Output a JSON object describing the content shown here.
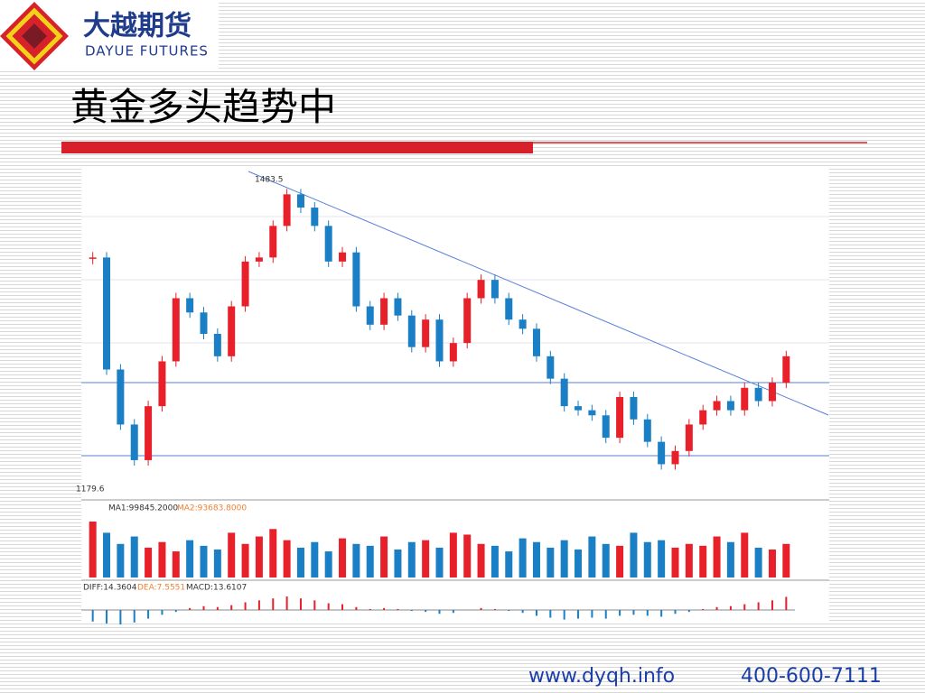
{
  "header": {
    "brand": "大越期货",
    "brand_en": "DAYUE FUTURES",
    "title": "黄金多头趋势中"
  },
  "footer": {
    "website": "www.dyqh.info",
    "phone": "400-600-7111"
  },
  "chart_data": {
    "type": "candlestick",
    "high_label": 1483.5,
    "low_label": 1179.6,
    "closes": [
      1407,
      1297,
      1243,
      1208,
      1261,
      1305,
      1367,
      1353,
      1332,
      1310,
      1359,
      1403,
      1407,
      1438,
      1469,
      1456,
      1438,
      1403,
      1412,
      1359,
      1341,
      1367,
      1350,
      1319,
      1346,
      1305,
      1323,
      1367,
      1385,
      1367,
      1346,
      1337,
      1310,
      1288,
      1261,
      1257,
      1252,
      1230,
      1270,
      1248,
      1226,
      1204,
      1217,
      1243,
      1257,
      1266,
      1257,
      1279,
      1266,
      1284,
      1310
    ],
    "up_color": "#e8202a",
    "down_color": "#1a7fc4",
    "volume_labels": [
      "MA1:99845.2000",
      "MA2:93683.8000"
    ],
    "volumes": [
      150000,
      120000,
      90000,
      110000,
      80000,
      95000,
      70000,
      100000,
      85000,
      75000,
      120000,
      90000,
      110000,
      130000,
      100000,
      80000,
      95000,
      70000,
      105000,
      90000,
      85000,
      110000,
      75000,
      95000,
      100000,
      80000,
      120000,
      115000,
      90000,
      85000,
      70000,
      105000,
      95000,
      80000,
      100000,
      75000,
      110000,
      90000,
      85000,
      120000,
      95000,
      100000,
      80000,
      90000,
      85000,
      110000,
      95000,
      120000,
      80000,
      75000,
      90000
    ],
    "macd_labels": [
      "DIFF:14.3604",
      "DEA:7.5551",
      "MACD:13.6107"
    ],
    "macd": [
      -12,
      -14,
      -15,
      -13,
      -9,
      -5,
      -2,
      2,
      4,
      3,
      5,
      8,
      10,
      12,
      14,
      12,
      10,
      7,
      6,
      3,
      1,
      2,
      1,
      -1,
      -2,
      -4,
      -3,
      0,
      2,
      1,
      -1,
      -3,
      -6,
      -8,
      -10,
      -9,
      -8,
      -9,
      -6,
      -5,
      -6,
      -7,
      -4,
      -2,
      1,
      3,
      4,
      6,
      8,
      10,
      13.6107
    ]
  }
}
